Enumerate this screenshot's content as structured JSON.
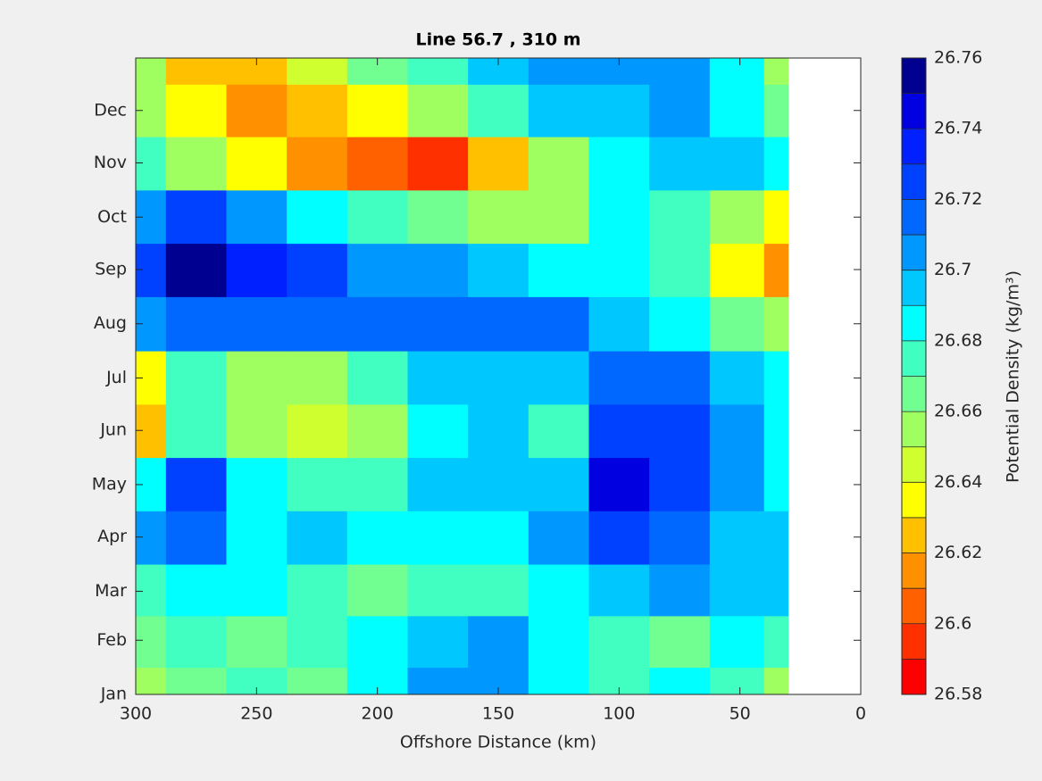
{
  "chart_data": {
    "type": "filled-contour",
    "title": "Line 56.7 , 310 m",
    "xlabel": "Offshore Distance (km)",
    "colorbar_label": "Potential Density (kg/m³)",
    "xlim": [
      300,
      0
    ],
    "xticks": [
      300,
      250,
      200,
      150,
      100,
      50,
      0
    ],
    "ylim": [
      1,
      365
    ],
    "yticks": [
      {
        "value": 1,
        "label": "Jan"
      },
      {
        "value": 32,
        "label": "Feb"
      },
      {
        "value": 60,
        "label": "Mar"
      },
      {
        "value": 91,
        "label": "Apr"
      },
      {
        "value": 121,
        "label": "May"
      },
      {
        "value": 152,
        "label": "Jun"
      },
      {
        "value": 182,
        "label": "Jul"
      },
      {
        "value": 213,
        "label": "Aug"
      },
      {
        "value": 244,
        "label": "Sep"
      },
      {
        "value": 274,
        "label": "Oct"
      },
      {
        "value": 305,
        "label": "Nov"
      },
      {
        "value": 335,
        "label": "Dec"
      }
    ],
    "x": [
      300,
      275,
      250,
      225,
      200,
      175,
      150,
      125,
      100,
      75,
      50,
      30
    ],
    "y": [
      1,
      32,
      60,
      91,
      121,
      152,
      182,
      213,
      244,
      274,
      305,
      335,
      365
    ],
    "z": [
      [
        26.655,
        26.665,
        26.675,
        26.665,
        26.685,
        26.705,
        26.705,
        26.685,
        26.675,
        26.685,
        26.675,
        26.655
      ],
      [
        26.665,
        26.675,
        26.665,
        26.675,
        26.685,
        26.695,
        26.705,
        26.685,
        26.675,
        26.665,
        26.685,
        26.675
      ],
      [
        26.675,
        26.685,
        26.685,
        26.675,
        26.665,
        26.675,
        26.675,
        26.685,
        26.695,
        26.705,
        26.695,
        26.695
      ],
      [
        26.705,
        26.715,
        26.685,
        26.695,
        26.685,
        26.685,
        26.685,
        26.705,
        26.725,
        26.715,
        26.695,
        26.695
      ],
      [
        26.685,
        26.725,
        26.685,
        26.675,
        26.675,
        26.695,
        26.695,
        26.695,
        26.745,
        26.725,
        26.705,
        26.685
      ],
      [
        26.625,
        26.675,
        26.655,
        26.645,
        26.655,
        26.685,
        26.695,
        26.675,
        26.725,
        26.725,
        26.705,
        26.685
      ],
      [
        26.635,
        26.675,
        26.655,
        26.655,
        26.675,
        26.695,
        26.695,
        26.695,
        26.715,
        26.715,
        26.695,
        26.685
      ],
      [
        26.705,
        26.715,
        26.715,
        26.715,
        26.715,
        26.715,
        26.715,
        26.715,
        26.695,
        26.685,
        26.665,
        26.655
      ],
      [
        26.725,
        26.755,
        26.735,
        26.725,
        26.705,
        26.705,
        26.695,
        26.685,
        26.685,
        26.675,
        26.635,
        26.615
      ],
      [
        26.705,
        26.725,
        26.705,
        26.685,
        26.675,
        26.665,
        26.655,
        26.655,
        26.685,
        26.675,
        26.655,
        26.635
      ],
      [
        26.675,
        26.655,
        26.635,
        26.615,
        26.605,
        26.595,
        26.625,
        26.655,
        26.685,
        26.695,
        26.695,
        26.685
      ],
      [
        26.655,
        26.635,
        26.615,
        26.625,
        26.635,
        26.655,
        26.675,
        26.695,
        26.695,
        26.705,
        26.685,
        26.665
      ],
      [
        26.655,
        26.625,
        26.625,
        26.645,
        26.665,
        26.675,
        26.695,
        26.705,
        26.705,
        26.705,
        26.685,
        26.655
      ]
    ],
    "levels": [
      26.58,
      26.59,
      26.6,
      26.61,
      26.62,
      26.63,
      26.64,
      26.65,
      26.66,
      26.67,
      26.68,
      26.69,
      26.7,
      26.71,
      26.72,
      26.73,
      26.74,
      26.75,
      26.76
    ],
    "colors": [
      "#ff0000",
      "#ff3000",
      "#ff6000",
      "#ff9000",
      "#ffc000",
      "#ffff00",
      "#d0ff30",
      "#a0ff60",
      "#70ff90",
      "#40ffc0",
      "#00ffff",
      "#00c8ff",
      "#0098ff",
      "#0068ff",
      "#0040ff",
      "#0020ff",
      "#0000e0",
      "#000090"
    ],
    "cticks": [
      26.58,
      26.6,
      26.62,
      26.64,
      26.66,
      26.68,
      26.7,
      26.72,
      26.74,
      26.76
    ]
  }
}
